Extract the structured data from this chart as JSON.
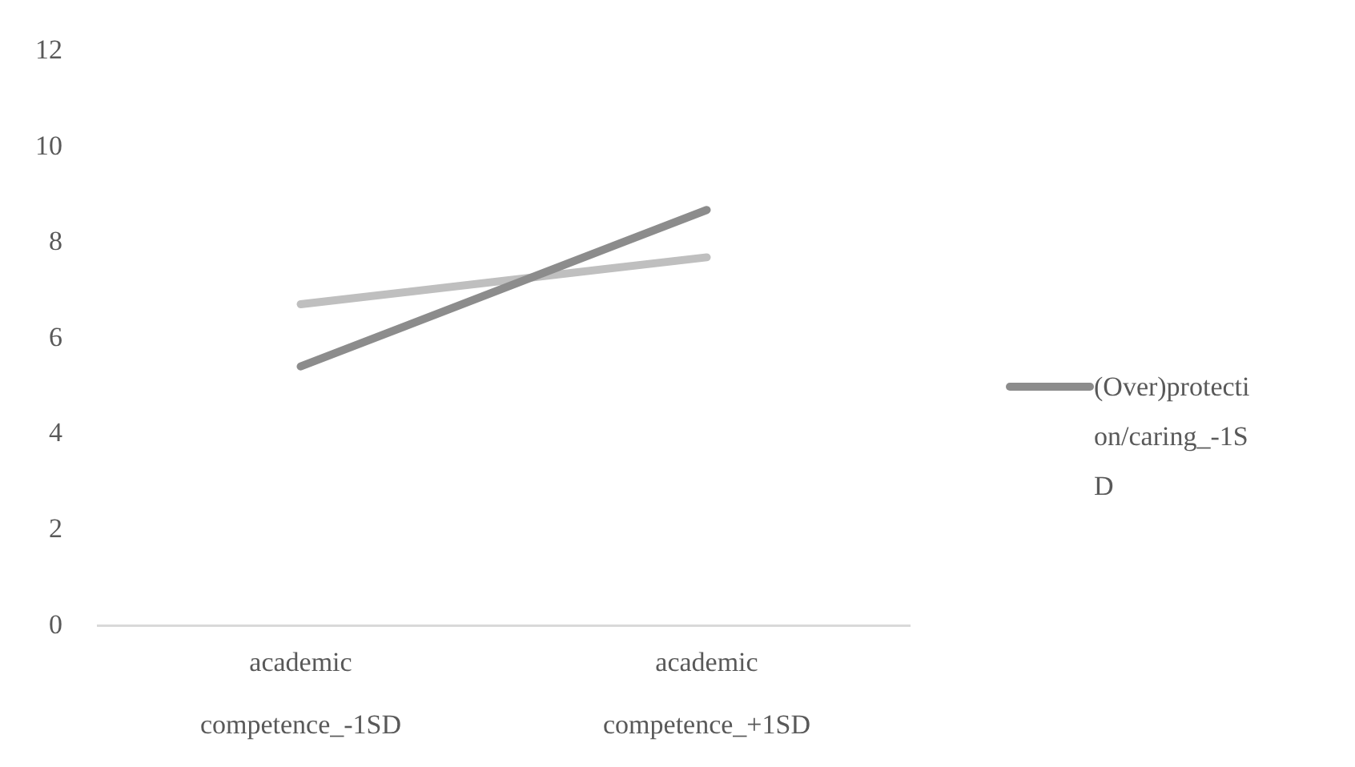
{
  "chart_data": {
    "type": "line",
    "categories": [
      "academic competence_-1SD",
      "academic competence_+1SD"
    ],
    "series": [
      {
        "name": "(Over)protection/caring_-1SD",
        "color": "#8c8c8c",
        "values": [
          5.42,
          8.69
        ]
      },
      {
        "color": "#bfbfbf",
        "values": [
          6.72,
          7.7
        ]
      }
    ],
    "ylim": [
      0,
      12
    ],
    "yticks": [
      0,
      2,
      4,
      6,
      8,
      10,
      12
    ],
    "grid": false,
    "legend": "right",
    "marker": "none",
    "line_style": "solid"
  }
}
